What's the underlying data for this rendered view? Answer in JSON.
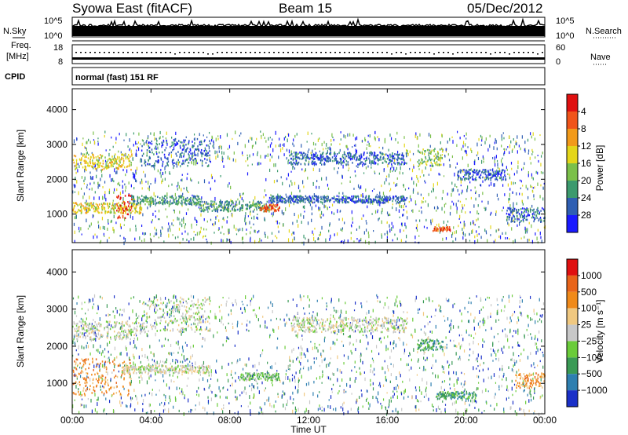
{
  "header": {
    "station": "Syowa East (fitACF)",
    "beam": "Beam 15",
    "date": "05/Dec/2012"
  },
  "top_panels": {
    "nsky_label": "N.Sky",
    "nsky_ticks": [
      "10^5",
      "10^0"
    ],
    "nsearch_label": "N.Search",
    "nsearch_ticks": [
      "10^5",
      "10^0"
    ],
    "freq_label_1": "Freq.",
    "freq_label_2": "[MHz]",
    "freq_ticks": [
      "18",
      "8"
    ],
    "nave_label": "Nave",
    "nave_ticks": [
      "60",
      "0"
    ],
    "cpid_label": "CPID",
    "cpid_value": "normal (fast) 151 RF"
  },
  "x_axis": {
    "ticks": [
      "00:00",
      "04:00",
      "08:00",
      "12:00",
      "16:00",
      "20:00",
      "00:00"
    ],
    "label": "Time UT"
  },
  "chart_data": [
    {
      "type": "heatmap",
      "panel": "power",
      "ylabel": "Slant Range [km]",
      "y_ticks": [
        1000,
        2000,
        3000,
        4000
      ],
      "ylim": [
        180,
        4600
      ],
      "xlim_hours": [
        0,
        24
      ],
      "colorbar": {
        "label": "Power [dB]",
        "tick_labels": [
          "4",
          "8",
          "12",
          "16",
          "20",
          "24",
          "28"
        ],
        "colors": [
          "#1a1aff",
          "#2f5fb3",
          "#3c9a6e",
          "#7bc04a",
          "#e4d61a",
          "#f29a1a",
          "#f0541a",
          "#e01010"
        ]
      },
      "bands": [
        {
          "t0": 0.0,
          "t1": 3.0,
          "r0": 2300,
          "r1": 2750,
          "level": 4
        },
        {
          "t0": 0.0,
          "t1": 3.5,
          "r0": 1050,
          "r1": 1350,
          "level": 4
        },
        {
          "t0": 2.2,
          "t1": 3.0,
          "r0": 900,
          "r1": 1600,
          "level": 7
        },
        {
          "t0": 3.0,
          "t1": 6.5,
          "r0": 1300,
          "r1": 1550,
          "level": 2
        },
        {
          "t0": 3.5,
          "t1": 7.0,
          "r0": 2400,
          "r1": 3200,
          "level": 1
        },
        {
          "t0": 6.5,
          "t1": 10.0,
          "r0": 1100,
          "r1": 1400,
          "level": 2
        },
        {
          "t0": 9.5,
          "t1": 10.5,
          "r0": 1100,
          "r1": 1300,
          "level": 6
        },
        {
          "t0": 10.0,
          "t1": 17.0,
          "r0": 1350,
          "r1": 1550,
          "level": 1
        },
        {
          "t0": 11.0,
          "t1": 17.0,
          "r0": 2450,
          "r1": 2800,
          "level": 1
        },
        {
          "t0": 17.5,
          "t1": 18.8,
          "r0": 2400,
          "r1": 2900,
          "level": 3
        },
        {
          "t0": 18.3,
          "t1": 19.2,
          "r0": 540,
          "r1": 660,
          "level": 6
        },
        {
          "t0": 19.5,
          "t1": 22.0,
          "r0": 2000,
          "r1": 2300,
          "level": 1
        },
        {
          "t0": 22.0,
          "t1": 24.0,
          "r0": 800,
          "r1": 1200,
          "level": 1
        }
      ]
    },
    {
      "type": "heatmap",
      "panel": "velocity",
      "ylabel": "Slant Range [km]",
      "y_ticks": [
        1000,
        2000,
        3000,
        4000
      ],
      "ylim": [
        180,
        4600
      ],
      "xlim_hours": [
        0,
        24
      ],
      "colorbar": {
        "label": "Velocity [m s⁻¹]",
        "tick_labels": [
          "1000",
          "500",
          "100",
          "25",
          "−25",
          "−100",
          "−500",
          "−1000"
        ],
        "colors": [
          "#1a30c8",
          "#2e7fb0",
          "#3a9a55",
          "#6acc3a",
          "#c8c8c8",
          "#f0c880",
          "#f08a1a",
          "#e8641a",
          "#e01010"
        ]
      },
      "bands": [
        {
          "t0": 0.0,
          "t1": 3.0,
          "r0": 700,
          "r1": 1700,
          "level": 6
        },
        {
          "t0": 0.0,
          "t1": 3.5,
          "r0": 2200,
          "r1": 2700,
          "level": 4
        },
        {
          "t0": 2.5,
          "t1": 7.0,
          "r0": 1300,
          "r1": 1500,
          "level": 4
        },
        {
          "t0": 3.5,
          "t1": 7.0,
          "r0": 2400,
          "r1": 3300,
          "level": 4
        },
        {
          "t0": 8.5,
          "t1": 10.5,
          "r0": 1100,
          "r1": 1300,
          "level": 3
        },
        {
          "t0": 11.0,
          "t1": 17.0,
          "r0": 2400,
          "r1": 2800,
          "level": 4
        },
        {
          "t0": 17.5,
          "t1": 18.8,
          "r0": 1900,
          "r1": 2200,
          "level": 2
        },
        {
          "t0": 18.5,
          "t1": 20.5,
          "r0": 600,
          "r1": 800,
          "level": 2
        },
        {
          "t0": 22.5,
          "t1": 24.0,
          "r0": 900,
          "r1": 1300,
          "level": 6
        }
      ]
    }
  ]
}
